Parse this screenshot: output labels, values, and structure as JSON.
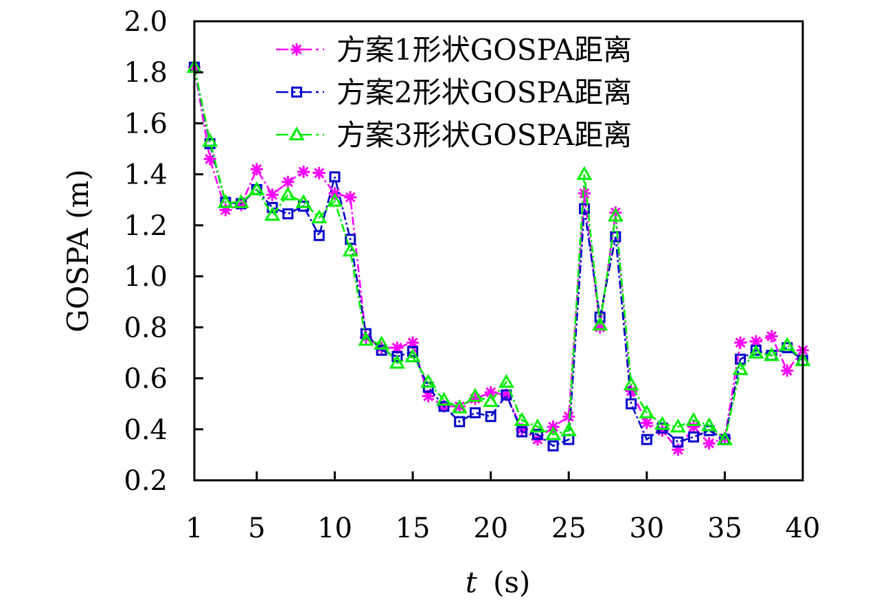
{
  "chart_data": {
    "type": "line",
    "title": "",
    "xlabel_italic": "t",
    "xlabel_unit": "(s)",
    "ylabel": "GOSPA (m)",
    "xlim": [
      1,
      40
    ],
    "ylim": [
      0.2,
      2.0
    ],
    "grid": false,
    "legend_position": "top-right",
    "x_ticks": [
      "1",
      "5",
      "10",
      "15",
      "20",
      "25",
      "30",
      "35",
      "40"
    ],
    "x_tick_values": [
      1,
      5,
      10,
      15,
      20,
      25,
      30,
      35,
      40
    ],
    "y_ticks": [
      "0.2",
      "0.4",
      "0.6",
      "0.8",
      "1.0",
      "1.2",
      "1.4",
      "1.6",
      "1.8",
      "2.0"
    ],
    "y_tick_values": [
      0.2,
      0.4,
      0.6,
      0.8,
      1.0,
      1.2,
      1.4,
      1.6,
      1.8,
      2.0
    ],
    "x": [
      1,
      2,
      3,
      4,
      5,
      6,
      7,
      8,
      9,
      10,
      11,
      12,
      13,
      14,
      15,
      16,
      17,
      18,
      19,
      20,
      21,
      22,
      23,
      24,
      25,
      26,
      27,
      28,
      29,
      30,
      31,
      32,
      33,
      34,
      35,
      36,
      37,
      38,
      39,
      40
    ],
    "series": [
      {
        "name": "方案1形状GOSPA距离",
        "color": "#ff00ff",
        "marker": "asterisk",
        "values": [
          1.82,
          1.46,
          1.26,
          1.28,
          1.42,
          1.32,
          1.37,
          1.41,
          1.405,
          1.325,
          1.31,
          0.76,
          0.72,
          0.72,
          0.74,
          0.53,
          0.49,
          0.49,
          0.52,
          0.545,
          0.535,
          0.4,
          0.36,
          0.41,
          0.45,
          1.325,
          0.8,
          1.25,
          0.55,
          0.425,
          0.395,
          0.32,
          0.41,
          0.345,
          0.365,
          0.74,
          0.745,
          0.765,
          0.63,
          0.71
        ]
      },
      {
        "name": "方案2形状GOSPA距离",
        "color": "#0000cc",
        "marker": "square",
        "values": [
          1.82,
          1.52,
          1.29,
          1.285,
          1.34,
          1.27,
          1.245,
          1.275,
          1.16,
          1.39,
          1.145,
          0.775,
          0.71,
          0.685,
          0.705,
          0.565,
          0.49,
          0.43,
          0.465,
          0.45,
          0.535,
          0.39,
          0.38,
          0.335,
          0.36,
          1.265,
          0.84,
          1.155,
          0.5,
          0.36,
          0.405,
          0.35,
          0.37,
          0.395,
          0.36,
          0.675,
          0.71,
          0.69,
          0.72,
          0.67
        ]
      },
      {
        "name": "方案3形状GOSPA距离",
        "color": "#00ee00",
        "marker": "triangle",
        "values": [
          1.82,
          1.53,
          1.29,
          1.29,
          1.34,
          1.24,
          1.32,
          1.29,
          1.23,
          1.295,
          1.1,
          0.75,
          0.735,
          0.66,
          0.685,
          0.585,
          0.515,
          0.485,
          0.53,
          0.51,
          0.585,
          0.435,
          0.41,
          0.38,
          0.395,
          1.4,
          0.81,
          1.237,
          0.575,
          0.465,
          0.42,
          0.41,
          0.435,
          0.415,
          0.36,
          0.635,
          0.7,
          0.69,
          0.73,
          0.67
        ]
      }
    ]
  }
}
